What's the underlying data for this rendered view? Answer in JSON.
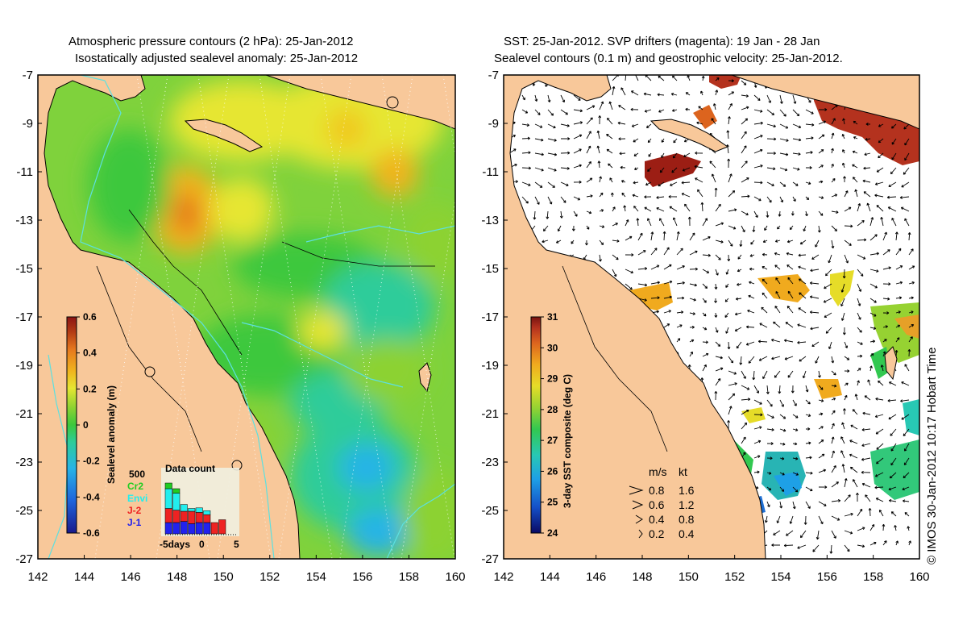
{
  "left_panel": {
    "title_line1": "Atmospheric pressure contours (2 hPa): 25-Jan-2012",
    "title_line2": "Isostatically adjusted sealevel anomaly: 25-Jan-2012",
    "y_ticks": [
      "-7",
      "-9",
      "-11",
      "-13",
      "-15",
      "-17",
      "-19",
      "-21",
      "-23",
      "-25",
      "-27"
    ],
    "x_ticks": [
      "142",
      "144",
      "146",
      "148",
      "150",
      "152",
      "154",
      "156",
      "158",
      "160"
    ],
    "colorbar": {
      "label": "Sealevel anomaly (m)",
      "ticks": [
        "0.6",
        "0.4",
        "0.2",
        "0",
        "-0.2",
        "-0.4",
        "-0.6"
      ],
      "colors": [
        "#1a1a8c",
        "#1e64dc",
        "#28b4e6",
        "#2ecc9a",
        "#3cc83c",
        "#8cd232",
        "#e6e632",
        "#f0b41e",
        "#e6781e",
        "#b43c14",
        "#8c1414"
      ]
    },
    "data_count": {
      "title": "Data count",
      "max_label": "500",
      "legend": [
        {
          "label": "Cr2",
          "color": "#22cc22"
        },
        {
          "label": "Envi",
          "color": "#22eeee"
        },
        {
          "label": "J-2",
          "color": "#ee2222"
        },
        {
          "label": "J-1",
          "color": "#2222ee"
        }
      ],
      "axis_labels": [
        "-5days",
        "0",
        "5"
      ],
      "bins": [
        {
          "j1": 0.2,
          "j2": 0.25,
          "envi": 0.35,
          "cr2": 0.1
        },
        {
          "j1": 0.2,
          "j2": 0.22,
          "envi": 0.3,
          "cr2": 0.08
        },
        {
          "j1": 0.22,
          "j2": 0.18,
          "envi": 0.12,
          "cr2": 0.0
        },
        {
          "j1": 0.18,
          "j2": 0.22,
          "envi": 0.05,
          "cr2": 0.0
        },
        {
          "j1": 0.2,
          "j2": 0.18,
          "envi": 0.08,
          "cr2": 0.0
        },
        {
          "j1": 0.2,
          "j2": 0.14,
          "envi": 0.07,
          "cr2": 0.0
        },
        {
          "j1": 0.0,
          "j2": 0.2,
          "envi": 0.0,
          "cr2": 0.0
        },
        {
          "j1": 0.0,
          "j2": 0.25,
          "envi": 0.0,
          "cr2": 0.0
        },
        {
          "j1": 0.0,
          "j2": 0.0,
          "envi": 0.0,
          "cr2": 0.0
        },
        {
          "j1": 0.0,
          "j2": 0.0,
          "envi": 0.0,
          "cr2": 0.0
        },
        {
          "j1": 0.0,
          "j2": 0.0,
          "envi": 0.0,
          "cr2": 0.0
        },
        {
          "j1": 0.0,
          "j2": 0.0,
          "envi": 0.0,
          "cr2": 0.0
        }
      ]
    }
  },
  "right_panel": {
    "title_line1": "SST: 25-Jan-2012. SVP drifters (magenta): 19 Jan - 28 Jan",
    "title_line2": "Sealevel contours (0.1 m) and geostrophic velocity: 25-Jan-2012.",
    "y_ticks": [
      "-7",
      "-9",
      "-11",
      "-13",
      "-15",
      "-17",
      "-19",
      "-21",
      "-23",
      "-25",
      "-27"
    ],
    "x_ticks": [
      "142",
      "144",
      "146",
      "148",
      "150",
      "152",
      "154",
      "156",
      "158",
      "160"
    ],
    "colorbar": {
      "label": "3-day SST composite (deg C)",
      "ticks": [
        "31",
        "30",
        "29",
        "28",
        "27",
        "26",
        "25",
        "24"
      ],
      "colors": [
        "#0a0a64",
        "#1450c8",
        "#1ea0e6",
        "#28c8b4",
        "#32c850",
        "#96d232",
        "#e6dc28",
        "#f0aa1e",
        "#dc641e",
        "#b4321e",
        "#781410"
      ]
    },
    "velocity_key": {
      "header_ms": "m/s",
      "header_kt": "kt",
      "rows": [
        {
          "ms": "0.8",
          "kt": "1.6",
          "arrow": 0.8
        },
        {
          "ms": "0.6",
          "kt": "1.2",
          "arrow": 0.6
        },
        {
          "ms": "0.4",
          "kt": "0.8",
          "arrow": 0.4
        },
        {
          "ms": "0.2",
          "kt": "0.4",
          "arrow": 0.2
        }
      ]
    }
  },
  "credit": "© IMOS 30-Jan-2012 10:17 Hobart Time",
  "colors": {
    "land": "#f8c89a",
    "ocean_base": "#7fd23c",
    "coast": "#000000",
    "bathymetry": "#5ce0e0"
  }
}
